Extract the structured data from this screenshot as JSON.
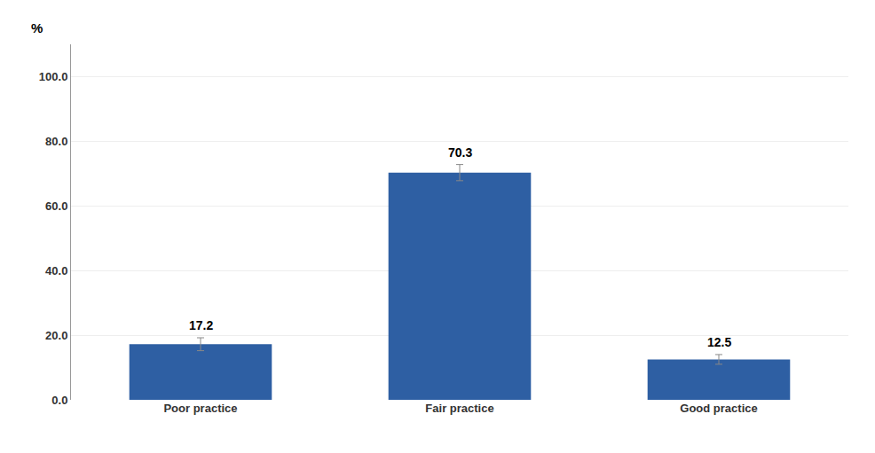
{
  "chart_data": {
    "type": "bar",
    "categories": [
      "Poor practice",
      "Fair practice",
      "Good practice"
    ],
    "values": [
      17.2,
      70.3,
      12.5
    ],
    "errors": [
      2.0,
      2.5,
      1.5
    ],
    "color": "#2E5FA3",
    "ylabel": "%",
    "ylim": [
      0,
      110
    ],
    "yticks": [
      {
        "value": 0,
        "label": "0.0"
      },
      {
        "value": 20,
        "label": "20.0"
      },
      {
        "value": 40,
        "label": "40.0"
      },
      {
        "value": 60,
        "label": "60.0"
      },
      {
        "value": 80,
        "label": "80.0"
      },
      {
        "value": 100,
        "label": "100.0"
      }
    ],
    "grid": true,
    "data_labels": true
  }
}
